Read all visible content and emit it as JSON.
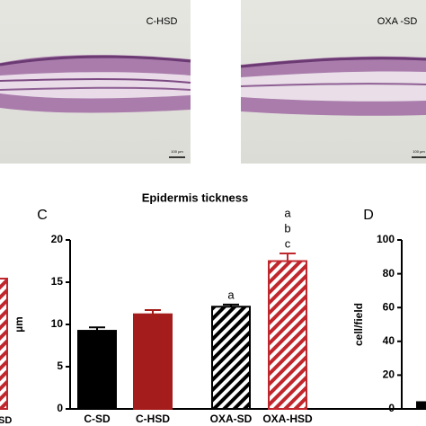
{
  "figure": {
    "images": [
      {
        "label": "C-HSD",
        "scale": "100 µm"
      },
      {
        "label": "OXA -SD",
        "scale": "100 µm"
      }
    ],
    "partial_label": "SD"
  },
  "chart_data": [
    {
      "type": "bar",
      "panel": "C",
      "title": "Epidermis tickness",
      "y_label": "µm",
      "categories": [
        "C-SD",
        "C-HSD",
        "OXA-SD",
        "OXA-HSD"
      ],
      "values": [
        9.25,
        11.2,
        12.1,
        17.5
      ],
      "errors": [
        0.4,
        0.5,
        0.25,
        0.9
      ],
      "colors": [
        "#000000",
        "#a51c1c",
        "#000000",
        "#c0272d"
      ],
      "hatched": [
        false,
        false,
        true,
        true
      ],
      "letters": [
        [],
        [],
        [
          "a"
        ],
        [
          "a",
          "b",
          "c"
        ]
      ],
      "ylim": [
        0,
        20
      ],
      "yticks": [
        0,
        5,
        10,
        15,
        20
      ]
    },
    {
      "type": "bar",
      "panel": "D",
      "y_label": "cell/field",
      "categories": [
        null
      ],
      "values": [
        4
      ],
      "colors": [
        "#000000"
      ],
      "hatched": [
        false
      ],
      "ylim": [
        0,
        100
      ],
      "yticks": [
        0,
        20,
        40,
        60,
        80,
        100
      ]
    }
  ]
}
